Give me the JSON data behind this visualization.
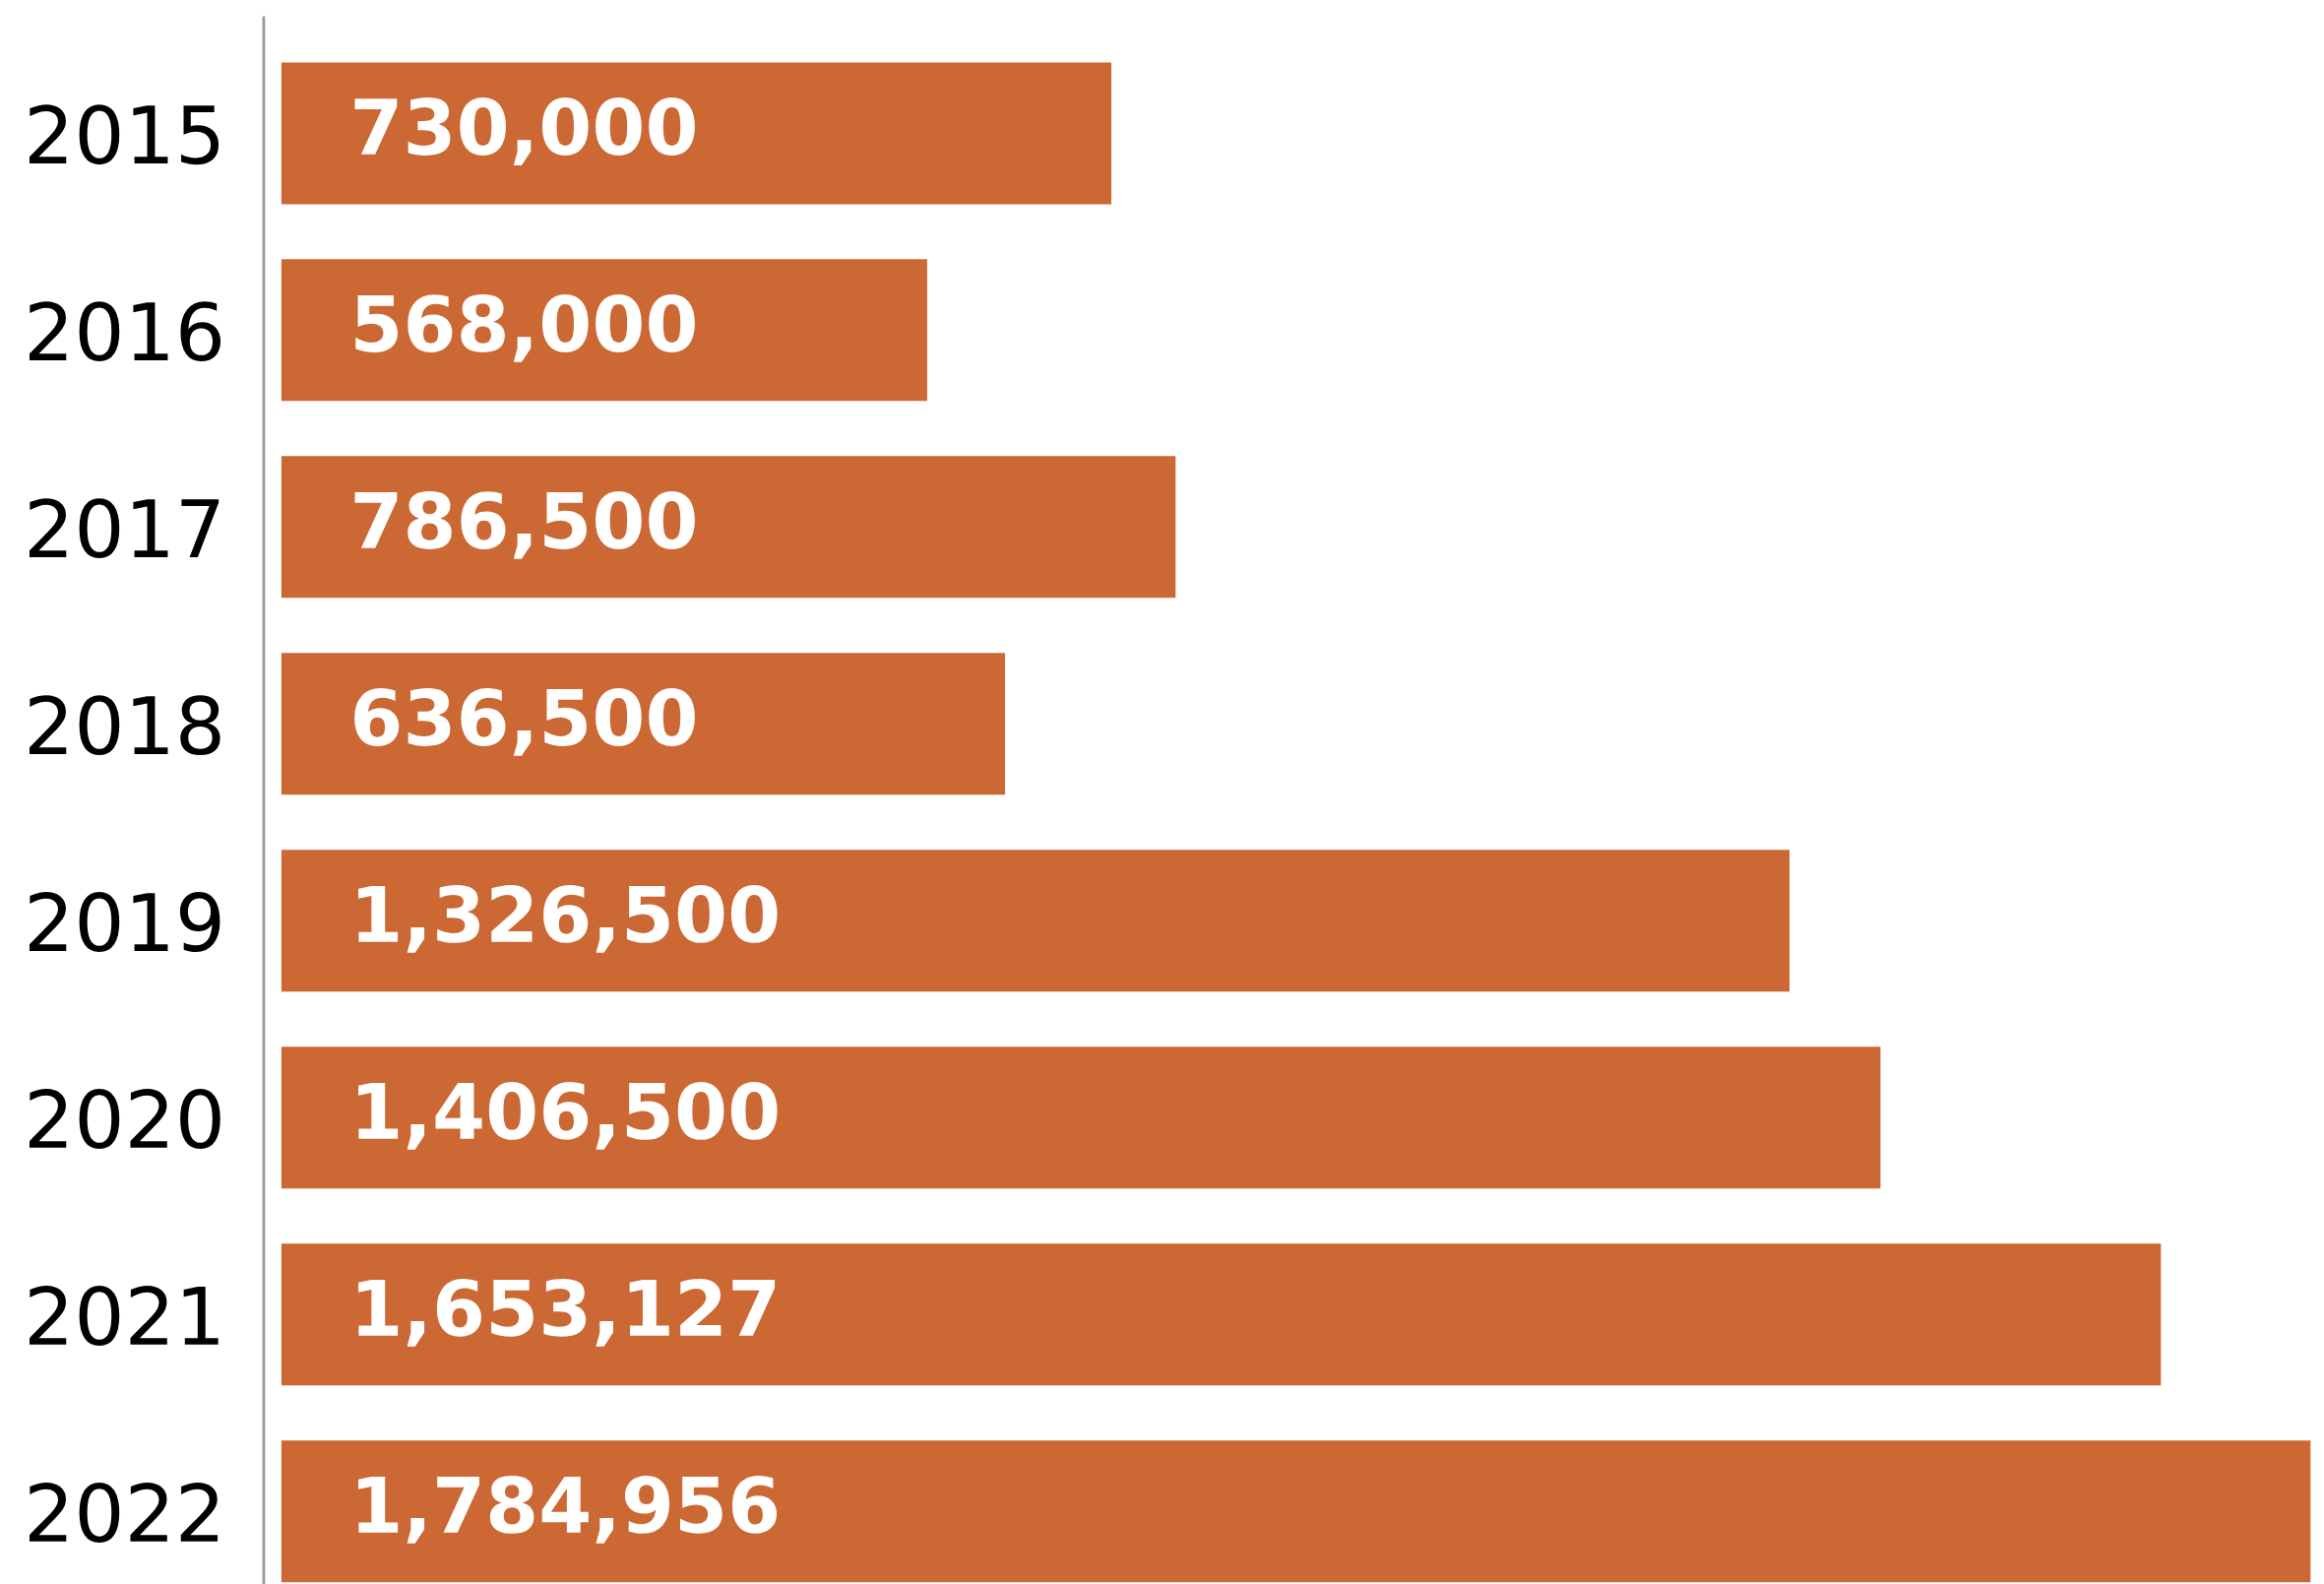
{
  "chart_data": {
    "type": "bar",
    "orientation": "horizontal",
    "categories": [
      "2015",
      "2016",
      "2017",
      "2018",
      "2019",
      "2020",
      "2021",
      "2022"
    ],
    "values": [
      730000,
      568000,
      786500,
      636500,
      1326500,
      1406500,
      1653127,
      1784956
    ],
    "value_labels": [
      "730,000",
      "568,000",
      "786,500",
      "636,500",
      "1,326,500",
      "1,406,500",
      "1,653,127",
      "1,784,956"
    ],
    "color": "#cc6833",
    "grid": false,
    "legend": false
  }
}
